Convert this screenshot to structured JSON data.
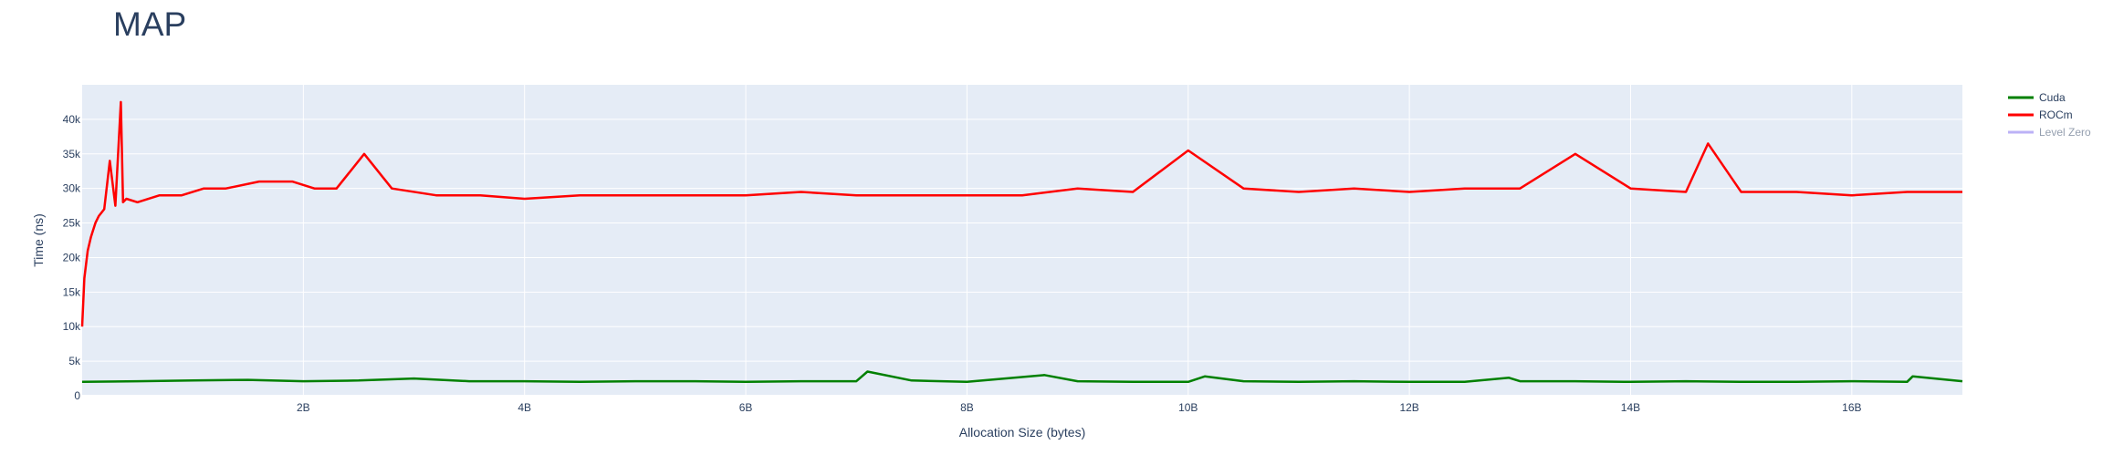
{
  "chart_data": {
    "type": "line",
    "title": "MAP",
    "xlabel": "Allocation Size (bytes)",
    "ylabel": "Time (ns)",
    "xlim": [
      0,
      17000000000
    ],
    "ylim": [
      0,
      45000
    ],
    "grid": true,
    "legend_placement": "top-right",
    "x_ticks": [
      {
        "value": 2000000000,
        "label": "2B"
      },
      {
        "value": 4000000000,
        "label": "4B"
      },
      {
        "value": 6000000000,
        "label": "6B"
      },
      {
        "value": 8000000000,
        "label": "8B"
      },
      {
        "value": 10000000000,
        "label": "10B"
      },
      {
        "value": 12000000000,
        "label": "12B"
      },
      {
        "value": 14000000000,
        "label": "14B"
      },
      {
        "value": 16000000000,
        "label": "16B"
      }
    ],
    "y_ticks": [
      {
        "value": 0,
        "label": "0"
      },
      {
        "value": 5000,
        "label": "5k"
      },
      {
        "value": 10000,
        "label": "10k"
      },
      {
        "value": 15000,
        "label": "15k"
      },
      {
        "value": 20000,
        "label": "20k"
      },
      {
        "value": 25000,
        "label": "25k"
      },
      {
        "value": 30000,
        "label": "30k"
      },
      {
        "value": 35000,
        "label": "35k"
      },
      {
        "value": 40000,
        "label": "40k"
      }
    ],
    "series": [
      {
        "name": "Cuda",
        "color": "#008000",
        "visible": true,
        "x": [
          0,
          500000000,
          1000000000,
          1500000000,
          2000000000,
          2500000000,
          3000000000,
          3500000000,
          4000000000,
          4500000000,
          5000000000,
          5500000000,
          6000000000,
          6500000000,
          7000000000,
          7100000000,
          7500000000,
          8000000000,
          8700000000,
          9000000000,
          9500000000,
          10000000000,
          10150000000,
          10500000000,
          11000000000,
          11500000000,
          12000000000,
          12500000000,
          12900000000,
          13000000000,
          13500000000,
          14000000000,
          14500000000,
          15000000000,
          15500000000,
          16000000000,
          16500000000,
          16550000000,
          17000000000
        ],
        "y": [
          2000,
          2100,
          2200,
          2300,
          2100,
          2200,
          2500,
          2100,
          2100,
          2000,
          2100,
          2100,
          2000,
          2100,
          2100,
          3500,
          2200,
          2000,
          3000,
          2100,
          2000,
          2000,
          2800,
          2100,
          2000,
          2100,
          2000,
          2000,
          2600,
          2100,
          2100,
          2000,
          2100,
          2000,
          2000,
          2100,
          2000,
          2800,
          2100
        ]
      },
      {
        "name": "ROCm",
        "color": "#ff0000",
        "visible": true,
        "x": [
          0,
          20000000,
          50000000,
          80000000,
          120000000,
          150000000,
          200000000,
          250000000,
          300000000,
          350000000,
          370000000,
          400000000,
          500000000,
          700000000,
          900000000,
          1100000000,
          1300000000,
          1600000000,
          1900000000,
          2100000000,
          2300000000,
          2550000000,
          2800000000,
          3200000000,
          3600000000,
          4000000000,
          4500000000,
          5000000000,
          5500000000,
          6000000000,
          6500000000,
          7000000000,
          7500000000,
          8000000000,
          8500000000,
          9000000000,
          9500000000,
          10000000000,
          10500000000,
          11000000000,
          11500000000,
          12000000000,
          12500000000,
          13000000000,
          13500000000,
          14000000000,
          14500000000,
          14700000000,
          15000000000,
          15500000000,
          16000000000,
          16500000000,
          17000000000
        ],
        "y": [
          10000,
          17000,
          21000,
          23000,
          25000,
          26000,
          27000,
          34000,
          27500,
          42500,
          28000,
          28500,
          28000,
          29000,
          29000,
          30000,
          30000,
          31000,
          31000,
          30000,
          30000,
          35000,
          30000,
          29000,
          29000,
          28500,
          29000,
          29000,
          29000,
          29000,
          29500,
          29000,
          29000,
          29000,
          29000,
          30000,
          29500,
          35500,
          30000,
          29500,
          30000,
          29500,
          30000,
          30000,
          35000,
          30000,
          29500,
          36500,
          29500,
          29500,
          29000,
          29500,
          29500
        ]
      },
      {
        "name": "Level Zero",
        "color": "#7b68ee",
        "visible": false,
        "x": [],
        "y": []
      }
    ]
  }
}
